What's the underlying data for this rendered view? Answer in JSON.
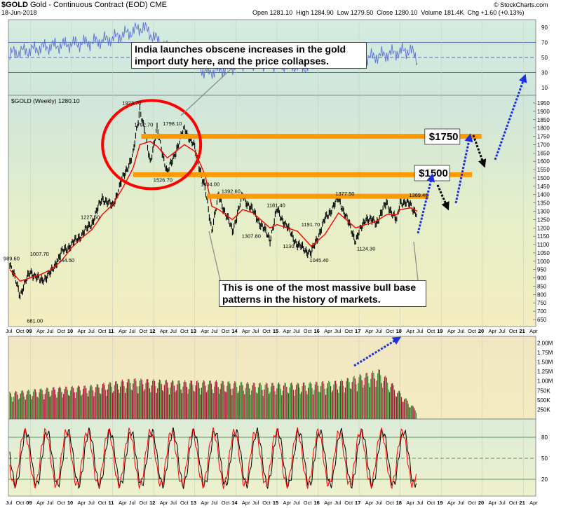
{
  "header": {
    "symbol": "$GOLD",
    "name": "Gold - Continuous Contract (EOD)",
    "exchange": "CME",
    "date": "18-Jun-2018",
    "open_label": "Open",
    "open": "1281.10",
    "high_label": "High",
    "high": "1284.90",
    "low_label": "Low",
    "low": "1279.50",
    "close_label": "Close",
    "close": "1280.10",
    "volume_label": "Volume",
    "volume": "181.4K",
    "chg_label": "Chg",
    "chg": "+1.60 (+0.13%)",
    "watermark": "© StockCharts.com"
  },
  "colors": {
    "price_bar": "#000000",
    "moving_average": "#ff0000",
    "rsi_line": "#5b6fd6",
    "resistance_line": "#ff9900",
    "circle": "#ff0000",
    "projection_up": "#1c2fe0",
    "projection_down": "#000000",
    "volume_up": "#3a9a3a",
    "volume_down": "#b0103a",
    "stoch_fast": "#000000",
    "stoch_slow": "#ff0000"
  },
  "chart_data": [
    {
      "type": "line",
      "panel": "rsi",
      "ylim": [
        0,
        100
      ],
      "tick_labels": [
        "90",
        "70",
        "50",
        "30",
        "10"
      ],
      "reference_lines": [
        70,
        50,
        30
      ],
      "x": [
        "2008-07",
        "2009-01",
        "2009-07",
        "2010-01",
        "2010-07",
        "2011-01",
        "2011-07",
        "2011-10",
        "2012-04",
        "2012-10",
        "2013-04",
        "2013-10",
        "2014-04",
        "2014-10",
        "2015-04",
        "2015-10",
        "2016-04",
        "2016-10",
        "2017-04",
        "2017-10",
        "2018-04",
        "2018-06"
      ],
      "series": [
        {
          "values": [
            55,
            60,
            65,
            68,
            70,
            75,
            85,
            90,
            65,
            60,
            30,
            35,
            45,
            42,
            40,
            38,
            55,
            50,
            50,
            55,
            60,
            47
          ]
        }
      ]
    },
    {
      "type": "line",
      "panel": "price",
      "legend": "$GOLD (Weekly) 1280.10",
      "ylim": [
        650,
        1950
      ],
      "tick_labels": [
        "1950",
        "1900",
        "1850",
        "1800",
        "1750",
        "1700",
        "1650",
        "1600",
        "1550",
        "1500",
        "1450",
        "1400",
        "1350",
        "1300",
        "1250",
        "1200",
        "1150",
        "1100",
        "1050",
        "1000",
        "950",
        "900",
        "850",
        "800",
        "750",
        "700",
        "650"
      ],
      "x_tick_labels": [
        "Jul",
        "Oct",
        "09",
        "Apr",
        "Jul",
        "Oct",
        "10",
        "Apr",
        "Jul",
        "Oct",
        "11",
        "Apr",
        "Jul",
        "Oct",
        "12",
        "Apr",
        "Jul",
        "Oct",
        "13",
        "Apr",
        "Jul",
        "Oct",
        "14",
        "Apr",
        "Jul",
        "Oct",
        "15",
        "Apr",
        "Jul",
        "Oct",
        "16",
        "Apr",
        "Jul",
        "Oct",
        "17",
        "Apr",
        "Jul",
        "Oct",
        "18",
        "Apr",
        "Jul",
        "Oct",
        "19",
        "Apr",
        "Jul",
        "Oct",
        "20",
        "Apr",
        "Jul",
        "Oct",
        "21",
        "Apr"
      ],
      "x": [
        "2008-07",
        "2008-10",
        "2009-01",
        "2009-04",
        "2009-07",
        "2009-10",
        "2010-01",
        "2010-04",
        "2010-07",
        "2010-10",
        "2011-01",
        "2011-04",
        "2011-07",
        "2011-09",
        "2011-12",
        "2012-02",
        "2012-05",
        "2012-10",
        "2013-01",
        "2013-04",
        "2013-06",
        "2013-08",
        "2013-12",
        "2014-03",
        "2014-06",
        "2014-11",
        "2015-01",
        "2015-07",
        "2015-11",
        "2016-03",
        "2016-07",
        "2016-12",
        "2017-03",
        "2017-06",
        "2017-09",
        "2017-12",
        "2018-01",
        "2018-04",
        "2018-06"
      ],
      "series": [
        {
          "values": [
            989.6,
            800,
            940,
            880,
            930,
            1050,
            1100,
            1160,
            1230,
            1380,
            1330,
            1500,
            1640,
            1921,
            1600,
            1792.7,
            1526.7,
            1798.1,
            1680,
            1434,
            1190,
            1392.6,
            1181.4,
            1392.6,
            1300,
            1130.4,
            1307.8,
            1100,
            1045.4,
            1250,
            1377.5,
            1124.3,
            1260,
            1230,
            1350,
            1240,
            1360,
            1340,
            1280.1
          ]
        },
        {
          "name": "MA",
          "values": [
            950,
            880,
            900,
            920,
            950,
            1000,
            1080,
            1140,
            1190,
            1280,
            1340,
            1440,
            1560,
            1700,
            1720,
            1690,
            1620,
            1700,
            1660,
            1520,
            1330,
            1310,
            1250,
            1310,
            1290,
            1200,
            1220,
            1180,
            1090,
            1160,
            1290,
            1200,
            1220,
            1240,
            1280,
            1280,
            1310,
            1320,
            1300
          ]
        }
      ],
      "annotations": [
        "989.60",
        "681.00",
        "1007.70",
        "1044.50",
        "1227.50",
        "1923.70",
        "1792.70",
        "1798.10",
        "1526.70",
        "1434.00",
        "1392.60",
        "1307.80",
        "1181.40",
        "1130.40",
        "1191.70",
        "1045.40",
        "1377.50",
        "1124.30",
        "1369.40"
      ],
      "callouts": [
        "India launches obscene increases in the gold import duty here, and the price collapses.",
        "This is one of the most massive bull base patterns in the history of markets."
      ],
      "levels": [
        {
          "label": "$1750",
          "value": 1750
        },
        {
          "label": "$1500",
          "value": 1520
        },
        {
          "label": "",
          "value": 1390
        }
      ]
    },
    {
      "type": "bar",
      "panel": "volume",
      "tick_labels": [
        "2.00M",
        "1.75M",
        "1.50M",
        "1.25M",
        "1.00M",
        "750K",
        "500K",
        "250K"
      ],
      "ylim": [
        0,
        2100000
      ],
      "x": [
        "2008-07",
        "2009-07",
        "2010-07",
        "2011-07",
        "2012-07",
        "2013-07",
        "2014-07",
        "2015-07",
        "2016-07",
        "2017-07",
        "2018-06"
      ],
      "values": [
        600000,
        700000,
        750000,
        900000,
        850000,
        850000,
        800000,
        800000,
        850000,
        1100000,
        181400
      ]
    },
    {
      "type": "line",
      "panel": "stochastic",
      "ylim": [
        0,
        100
      ],
      "tick_labels": [
        "80",
        "50",
        "20"
      ],
      "reference_lines": [
        80,
        50,
        20
      ],
      "x": [
        "2008-07",
        "2009-01",
        "2009-07",
        "2010-01",
        "2010-07",
        "2011-01",
        "2011-07",
        "2012-01",
        "2012-07",
        "2013-01",
        "2013-07",
        "2014-01",
        "2014-07",
        "2015-01",
        "2015-07",
        "2016-01",
        "2016-07",
        "2017-01",
        "2017-07",
        "2018-01",
        "2018-06"
      ],
      "series": [
        {
          "name": "%K",
          "values": [
            30,
            85,
            20,
            80,
            25,
            90,
            15,
            85,
            20,
            80,
            10,
            85,
            20,
            80,
            15,
            90,
            20,
            85,
            25,
            90,
            15
          ]
        },
        {
          "name": "%D",
          "values": [
            35,
            75,
            30,
            70,
            35,
            80,
            25,
            75,
            30,
            70,
            20,
            75,
            30,
            70,
            25,
            80,
            30,
            75,
            35,
            80,
            25
          ]
        }
      ]
    }
  ]
}
